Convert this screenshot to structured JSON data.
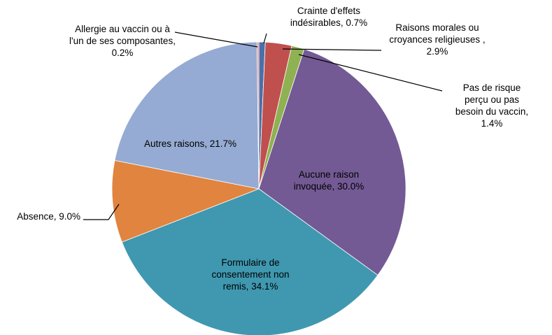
{
  "chart_data": {
    "type": "pie",
    "categories": [
      "Crainte d'effets indésirables, 0.7%",
      "Raisons morales ou croyances religieuses , 2.9%",
      "Pas de risque perçu ou pas besoin du vaccin, 1.4%",
      "Aucune raison invoquée, 30.0%",
      "Formulaire de consentement non remis, 34.1%",
      "Absence, 9.0%",
      "Autres raisons, 21.7%",
      "Allergie au vaccin ou à l'un de ses composantes, 0.2%"
    ],
    "values": [
      0.7,
      2.9,
      1.4,
      30.0,
      34.1,
      9.0,
      21.7,
      0.2
    ],
    "colors": [
      "#4a70aa",
      "#c0504d",
      "#8fb152",
      "#735a94",
      "#3f98b0",
      "#e0843f",
      "#95abd3",
      "#e58e8e"
    ]
  }
}
